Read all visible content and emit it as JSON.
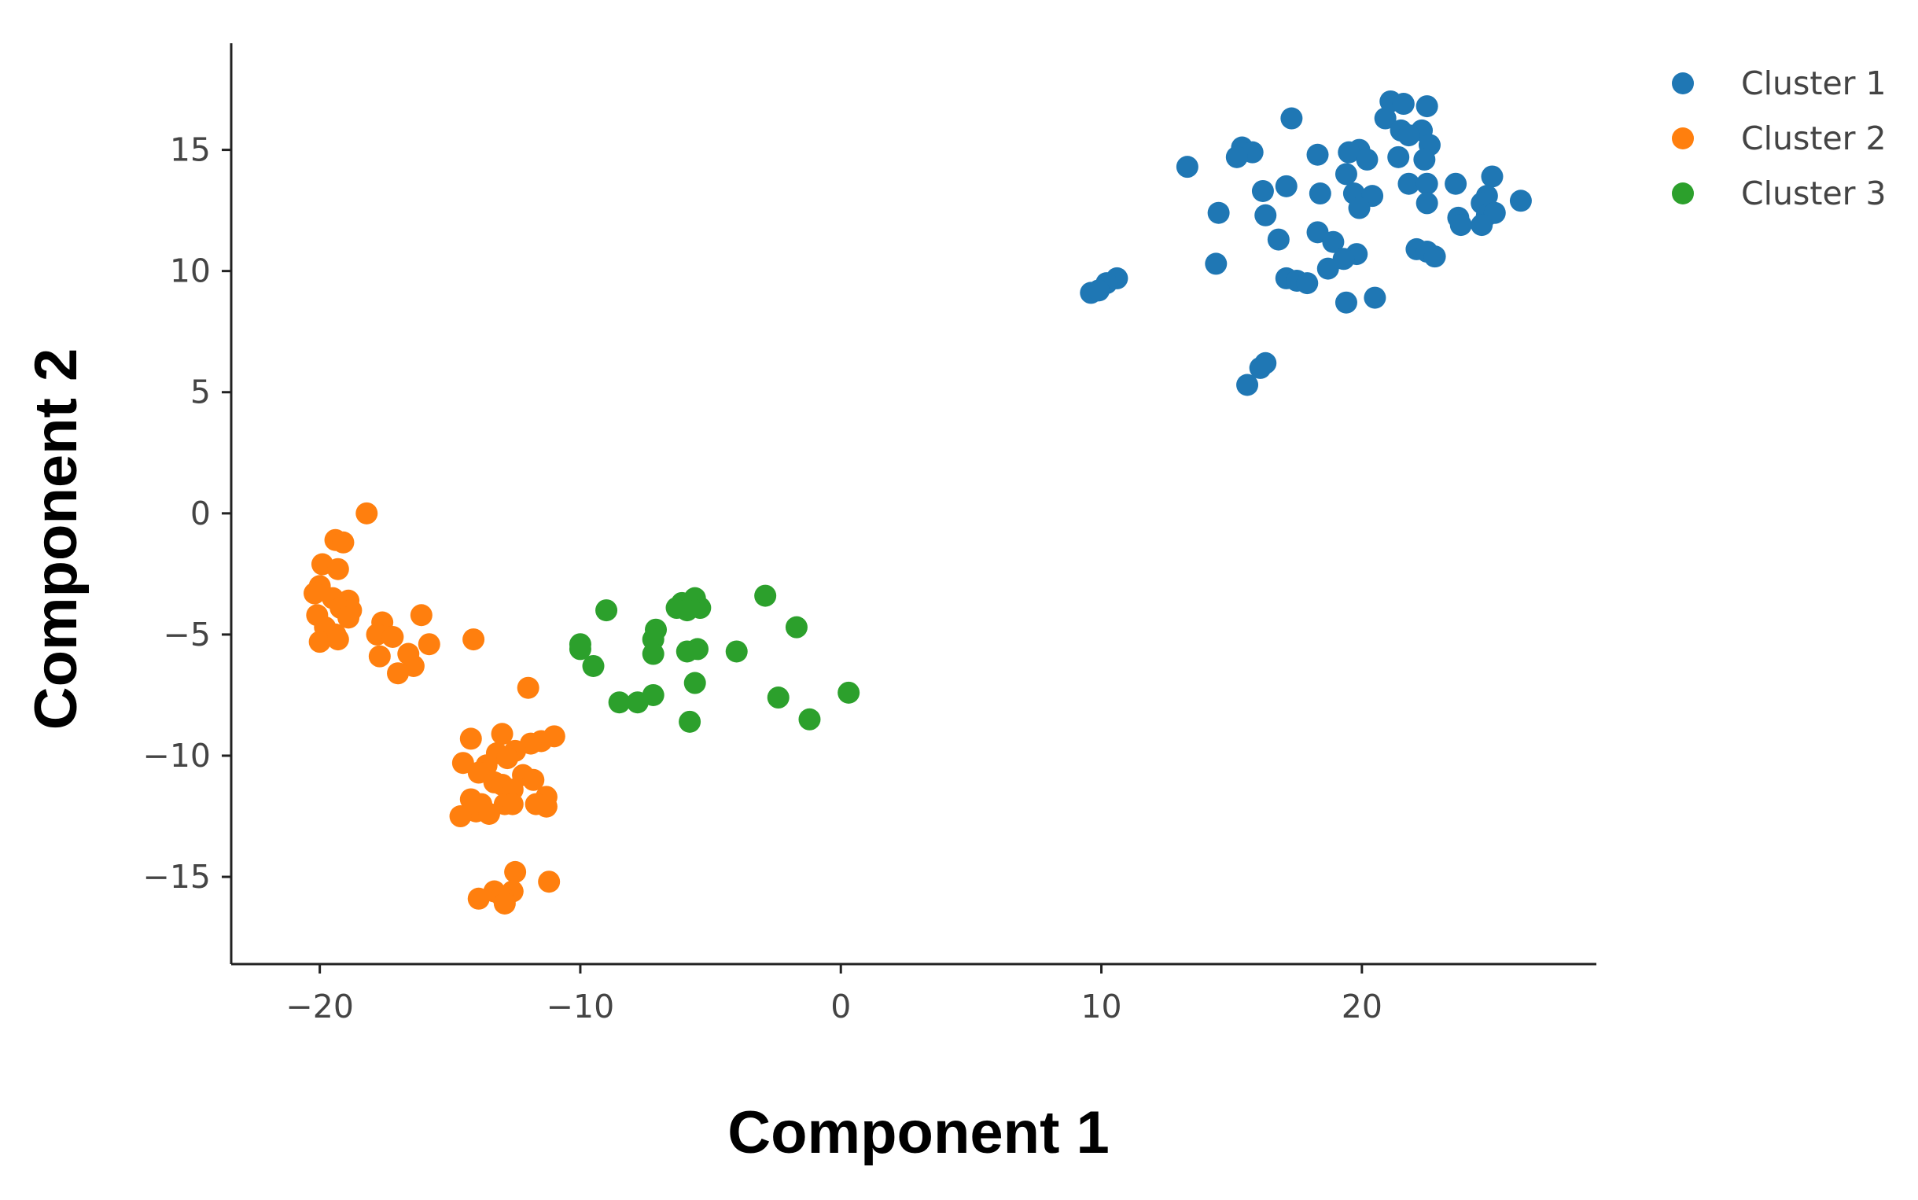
{
  "chart_data": {
    "type": "scatter",
    "title": "",
    "xlabel": "Component 1",
    "ylabel": "Component 2",
    "xlim": [
      -23.4,
      29
    ],
    "ylim": [
      -18.6,
      19.4
    ],
    "xticks": [
      -20,
      -10,
      0,
      10,
      20
    ],
    "yticks": [
      -15,
      -10,
      -5,
      0,
      5,
      10,
      15
    ],
    "grid": false,
    "legend_position": "top-right",
    "series": [
      {
        "name": "Cluster 1",
        "color": "#1f77b4",
        "points": [
          [
            21.1,
            17.0
          ],
          [
            21.6,
            16.9
          ],
          [
            22.5,
            16.8
          ],
          [
            20.9,
            16.3
          ],
          [
            17.3,
            16.3
          ],
          [
            21.5,
            15.8
          ],
          [
            22.3,
            15.8
          ],
          [
            21.8,
            15.6
          ],
          [
            22.6,
            15.2
          ],
          [
            15.4,
            15.1
          ],
          [
            15.8,
            14.9
          ],
          [
            15.2,
            14.7
          ],
          [
            18.3,
            14.8
          ],
          [
            19.9,
            15.0
          ],
          [
            19.5,
            14.9
          ],
          [
            21.4,
            14.7
          ],
          [
            20.2,
            14.6
          ],
          [
            22.4,
            14.6
          ],
          [
            13.3,
            14.3
          ],
          [
            19.4,
            14.0
          ],
          [
            25.0,
            13.9
          ],
          [
            23.6,
            13.6
          ],
          [
            21.8,
            13.6
          ],
          [
            22.5,
            13.6
          ],
          [
            17.1,
            13.5
          ],
          [
            16.2,
            13.3
          ],
          [
            18.4,
            13.2
          ],
          [
            19.7,
            13.2
          ],
          [
            20.4,
            13.1
          ],
          [
            24.8,
            13.1
          ],
          [
            24.6,
            12.8
          ],
          [
            22.5,
            12.8
          ],
          [
            26.1,
            12.9
          ],
          [
            19.9,
            12.6
          ],
          [
            14.5,
            12.4
          ],
          [
            16.3,
            12.3
          ],
          [
            23.7,
            12.2
          ],
          [
            24.8,
            12.3
          ],
          [
            25.1,
            12.4
          ],
          [
            23.8,
            11.9
          ],
          [
            24.6,
            11.9
          ],
          [
            18.3,
            11.6
          ],
          [
            16.8,
            11.3
          ],
          [
            18.9,
            11.2
          ],
          [
            22.1,
            10.9
          ],
          [
            22.5,
            10.8
          ],
          [
            22.8,
            10.6
          ],
          [
            19.8,
            10.7
          ],
          [
            19.3,
            10.5
          ],
          [
            14.4,
            10.3
          ],
          [
            18.7,
            10.1
          ],
          [
            17.1,
            9.7
          ],
          [
            17.5,
            9.6
          ],
          [
            17.9,
            9.5
          ],
          [
            10.6,
            9.7
          ],
          [
            10.2,
            9.5
          ],
          [
            9.6,
            9.1
          ],
          [
            9.9,
            9.2
          ],
          [
            20.5,
            8.9
          ],
          [
            19.4,
            8.7
          ],
          [
            16.3,
            6.2
          ],
          [
            16.1,
            6.0
          ],
          [
            15.6,
            5.3
          ]
        ]
      },
      {
        "name": "Cluster 2",
        "color": "#ff7f0e",
        "points": [
          [
            -18.2,
            0.0
          ],
          [
            -19.4,
            -1.1
          ],
          [
            -19.1,
            -1.2
          ],
          [
            -19.9,
            -2.1
          ],
          [
            -19.3,
            -2.3
          ],
          [
            -20.0,
            -3.0
          ],
          [
            -20.2,
            -3.3
          ],
          [
            -19.5,
            -3.5
          ],
          [
            -18.9,
            -3.6
          ],
          [
            -19.2,
            -3.9
          ],
          [
            -18.8,
            -4.0
          ],
          [
            -20.1,
            -4.2
          ],
          [
            -18.9,
            -4.3
          ],
          [
            -16.1,
            -4.2
          ],
          [
            -17.6,
            -4.5
          ],
          [
            -19.8,
            -4.7
          ],
          [
            -19.4,
            -5.0
          ],
          [
            -17.8,
            -5.0
          ],
          [
            -17.2,
            -5.1
          ],
          [
            -20.0,
            -5.3
          ],
          [
            -19.3,
            -5.2
          ],
          [
            -14.1,
            -5.2
          ],
          [
            -15.8,
            -5.4
          ],
          [
            -16.6,
            -5.8
          ],
          [
            -17.7,
            -5.9
          ],
          [
            -16.4,
            -6.3
          ],
          [
            -17.0,
            -6.6
          ],
          [
            -12.0,
            -7.2
          ],
          [
            -13.0,
            -9.1
          ],
          [
            -14.2,
            -9.3
          ],
          [
            -11.0,
            -9.2
          ],
          [
            -11.5,
            -9.4
          ],
          [
            -11.9,
            -9.5
          ],
          [
            -12.5,
            -9.8
          ],
          [
            -13.2,
            -9.9
          ],
          [
            -12.8,
            -10.1
          ],
          [
            -14.5,
            -10.3
          ],
          [
            -13.6,
            -10.4
          ],
          [
            -13.9,
            -10.7
          ],
          [
            -12.2,
            -10.8
          ],
          [
            -11.8,
            -11.0
          ],
          [
            -13.3,
            -11.1
          ],
          [
            -13.0,
            -11.2
          ],
          [
            -12.6,
            -11.4
          ],
          [
            -11.3,
            -11.7
          ],
          [
            -14.2,
            -11.8
          ],
          [
            -13.8,
            -12.0
          ],
          [
            -12.9,
            -12.0
          ],
          [
            -12.6,
            -12.0
          ],
          [
            -11.7,
            -12.0
          ],
          [
            -11.3,
            -12.1
          ],
          [
            -14.0,
            -12.3
          ],
          [
            -13.5,
            -12.4
          ],
          [
            -14.6,
            -12.5
          ],
          [
            -12.5,
            -14.8
          ],
          [
            -11.2,
            -15.2
          ],
          [
            -13.3,
            -15.6
          ],
          [
            -12.6,
            -15.6
          ],
          [
            -13.0,
            -15.8
          ],
          [
            -13.9,
            -15.9
          ],
          [
            -12.9,
            -16.1
          ]
        ]
      },
      {
        "name": "Cluster 3",
        "color": "#2ca02c",
        "points": [
          [
            -2.9,
            -3.4
          ],
          [
            -5.6,
            -3.5
          ],
          [
            -6.1,
            -3.7
          ],
          [
            -5.4,
            -3.9
          ],
          [
            -6.3,
            -3.9
          ],
          [
            -5.8,
            -3.9
          ],
          [
            -5.9,
            -4.0
          ],
          [
            -9.0,
            -4.0
          ],
          [
            -1.7,
            -4.7
          ],
          [
            -7.1,
            -4.8
          ],
          [
            -7.2,
            -5.2
          ],
          [
            -10.0,
            -5.4
          ],
          [
            -10.0,
            -5.6
          ],
          [
            -5.5,
            -5.6
          ],
          [
            -5.9,
            -5.7
          ],
          [
            -4.0,
            -5.7
          ],
          [
            -7.2,
            -5.8
          ],
          [
            -9.5,
            -6.3
          ],
          [
            -5.6,
            -7.0
          ],
          [
            0.3,
            -7.4
          ],
          [
            -7.2,
            -7.5
          ],
          [
            -2.4,
            -7.6
          ],
          [
            -8.5,
            -7.8
          ],
          [
            -7.8,
            -7.8
          ],
          [
            -5.8,
            -8.6
          ],
          [
            -1.2,
            -8.5
          ]
        ]
      }
    ]
  }
}
